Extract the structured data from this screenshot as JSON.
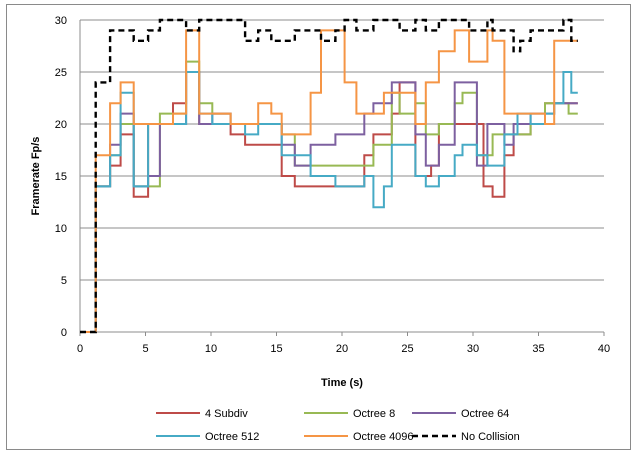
{
  "chart_data": {
    "type": "line",
    "step": true,
    "title": "",
    "xlabel": "Time (s)",
    "ylabel": "Framerate Fp/s",
    "xlim": [
      0,
      40
    ],
    "ylim": [
      0,
      30
    ],
    "xticks": [
      0,
      5,
      10,
      15,
      20,
      25,
      30,
      35,
      40
    ],
    "yticks": [
      0,
      5,
      10,
      15,
      20,
      25,
      30
    ],
    "grid": "horizontal",
    "legend_position": "bottom",
    "series": [
      {
        "name": "4 Subdiv",
        "color": "#be4b48",
        "dash": "solid",
        "points": [
          [
            0,
            0
          ],
          [
            1.1,
            0
          ],
          [
            1.2,
            14
          ],
          [
            2.3,
            16
          ],
          [
            3.1,
            19
          ],
          [
            4.1,
            13
          ],
          [
            5.2,
            20
          ],
          [
            7.1,
            22
          ],
          [
            8.1,
            25
          ],
          [
            9.1,
            20
          ],
          [
            10.1,
            20
          ],
          [
            11.5,
            19
          ],
          [
            12.6,
            18
          ],
          [
            13.6,
            18
          ],
          [
            15.4,
            15
          ],
          [
            16.4,
            14
          ],
          [
            19.5,
            14
          ],
          [
            21.7,
            17
          ],
          [
            22.4,
            19
          ],
          [
            23.8,
            21
          ],
          [
            24.4,
            24
          ],
          [
            25.6,
            15
          ],
          [
            26.8,
            16
          ],
          [
            27.4,
            20
          ],
          [
            29.2,
            20
          ],
          [
            30.8,
            14
          ],
          [
            31.5,
            13
          ],
          [
            32.4,
            17
          ],
          [
            33.1,
            19
          ],
          [
            34.4,
            20
          ],
          [
            35.5,
            22
          ],
          [
            38,
            22
          ]
        ]
      },
      {
        "name": "Octree 8",
        "color": "#98b954",
        "dash": "solid",
        "points": [
          [
            0,
            0
          ],
          [
            1.1,
            0
          ],
          [
            1.2,
            14
          ],
          [
            2.3,
            17
          ],
          [
            3.1,
            20
          ],
          [
            4.1,
            14
          ],
          [
            5.2,
            14
          ],
          [
            6.1,
            21
          ],
          [
            7.1,
            21
          ],
          [
            8.1,
            26
          ],
          [
            9.1,
            22
          ],
          [
            10.1,
            21
          ],
          [
            11.5,
            20
          ],
          [
            12.6,
            20
          ],
          [
            15.4,
            19
          ],
          [
            16.4,
            16
          ],
          [
            19.5,
            16
          ],
          [
            21.7,
            16
          ],
          [
            22.4,
            18
          ],
          [
            23.8,
            23
          ],
          [
            24.4,
            21
          ],
          [
            25.6,
            22
          ],
          [
            26.4,
            19
          ],
          [
            27.4,
            20
          ],
          [
            28.6,
            22
          ],
          [
            29.2,
            23
          ],
          [
            30.3,
            17
          ],
          [
            31.5,
            19
          ],
          [
            33.1,
            19
          ],
          [
            34.4,
            20
          ],
          [
            35.5,
            22
          ],
          [
            36.2,
            22
          ],
          [
            37.3,
            21
          ],
          [
            38,
            21
          ]
        ]
      },
      {
        "name": "Octree 64",
        "color": "#7d60a0",
        "dash": "solid",
        "points": [
          [
            0,
            0
          ],
          [
            1.1,
            0
          ],
          [
            1.2,
            14
          ],
          [
            2.3,
            18
          ],
          [
            3.1,
            21
          ],
          [
            4.1,
            14
          ],
          [
            5.2,
            15
          ],
          [
            6.1,
            20
          ],
          [
            7.1,
            20
          ],
          [
            8.1,
            25
          ],
          [
            9.1,
            20
          ],
          [
            10.1,
            21
          ],
          [
            11.5,
            20
          ],
          [
            12.6,
            20
          ],
          [
            13.6,
            20
          ],
          [
            15.4,
            18
          ],
          [
            16.4,
            16
          ],
          [
            17.6,
            18
          ],
          [
            19.5,
            19
          ],
          [
            21.7,
            21
          ],
          [
            22.4,
            22
          ],
          [
            23.8,
            24
          ],
          [
            24.4,
            24
          ],
          [
            25.6,
            19
          ],
          [
            26.4,
            16
          ],
          [
            27.4,
            18
          ],
          [
            28.6,
            24
          ],
          [
            29.7,
            24
          ],
          [
            30.3,
            16
          ],
          [
            31.1,
            20
          ],
          [
            32.4,
            18
          ],
          [
            33.1,
            20
          ],
          [
            34.4,
            21
          ],
          [
            35.5,
            21
          ],
          [
            36.2,
            22
          ],
          [
            38,
            22
          ]
        ]
      },
      {
        "name": "Octree 512",
        "color": "#46aac5",
        "dash": "solid",
        "points": [
          [
            0,
            0
          ],
          [
            1.1,
            0
          ],
          [
            1.2,
            14
          ],
          [
            2.3,
            17
          ],
          [
            3.1,
            23
          ],
          [
            4.1,
            14
          ],
          [
            5.2,
            20
          ],
          [
            7.1,
            20
          ],
          [
            8.1,
            25
          ],
          [
            9.1,
            21
          ],
          [
            10.1,
            20
          ],
          [
            11.5,
            20
          ],
          [
            12.6,
            19
          ],
          [
            13.6,
            20
          ],
          [
            15.4,
            17
          ],
          [
            16.4,
            17
          ],
          [
            17.6,
            15
          ],
          [
            18.4,
            15
          ],
          [
            19.5,
            14
          ],
          [
            21.7,
            15
          ],
          [
            22.4,
            12
          ],
          [
            23.2,
            14
          ],
          [
            23.8,
            18
          ],
          [
            25.6,
            15
          ],
          [
            26.4,
            14
          ],
          [
            27.4,
            15
          ],
          [
            28.6,
            17
          ],
          [
            29.2,
            18
          ],
          [
            30.3,
            17
          ],
          [
            31.1,
            16
          ],
          [
            32.4,
            19
          ],
          [
            33.4,
            21
          ],
          [
            34.4,
            20
          ],
          [
            35.5,
            21
          ],
          [
            36.2,
            22
          ],
          [
            36.9,
            25
          ],
          [
            37.5,
            23
          ],
          [
            38,
            23
          ]
        ]
      },
      {
        "name": "Octree 4096",
        "color": "#f59545",
        "dash": "solid",
        "points": [
          [
            0,
            0
          ],
          [
            1.1,
            0
          ],
          [
            1.2,
            17
          ],
          [
            2.3,
            22
          ],
          [
            3.1,
            24
          ],
          [
            4.1,
            20
          ],
          [
            5.2,
            20
          ],
          [
            7.1,
            21
          ],
          [
            8.1,
            29
          ],
          [
            9.1,
            21
          ],
          [
            10.1,
            21
          ],
          [
            11.5,
            20
          ],
          [
            12.6,
            20
          ],
          [
            13.6,
            22
          ],
          [
            14.6,
            21
          ],
          [
            15.4,
            19
          ],
          [
            17.6,
            23
          ],
          [
            18.4,
            29
          ],
          [
            19.5,
            29
          ],
          [
            20.2,
            24
          ],
          [
            21.1,
            21
          ],
          [
            22.4,
            21
          ],
          [
            23.2,
            23
          ],
          [
            23.8,
            23
          ],
          [
            24.4,
            23
          ],
          [
            25.6,
            20
          ],
          [
            26.4,
            24
          ],
          [
            27.4,
            27
          ],
          [
            28.6,
            29
          ],
          [
            29.7,
            26
          ],
          [
            31.1,
            29
          ],
          [
            31.5,
            28
          ],
          [
            32.4,
            21
          ],
          [
            33.1,
            21
          ],
          [
            34.4,
            21
          ],
          [
            35.5,
            20
          ],
          [
            36.2,
            28
          ],
          [
            37.3,
            28
          ],
          [
            38,
            28
          ]
        ]
      },
      {
        "name": "No Collision",
        "color": "#000000",
        "dash": "dashed",
        "points": [
          [
            0,
            0
          ],
          [
            1.1,
            0
          ],
          [
            1.2,
            24
          ],
          [
            2.3,
            29
          ],
          [
            3.1,
            29
          ],
          [
            4.1,
            28
          ],
          [
            5.2,
            29
          ],
          [
            6.1,
            30
          ],
          [
            7.1,
            30
          ],
          [
            8.1,
            29
          ],
          [
            9.1,
            30
          ],
          [
            10.1,
            30
          ],
          [
            11.5,
            30
          ],
          [
            12.6,
            28
          ],
          [
            13.6,
            29
          ],
          [
            14.6,
            28
          ],
          [
            15.4,
            28
          ],
          [
            16.4,
            29
          ],
          [
            17.6,
            29
          ],
          [
            18.4,
            28
          ],
          [
            19.5,
            29
          ],
          [
            20.2,
            30
          ],
          [
            21.1,
            29
          ],
          [
            22.4,
            30
          ],
          [
            23.8,
            30
          ],
          [
            24.4,
            29
          ],
          [
            25.6,
            30
          ],
          [
            26.4,
            29
          ],
          [
            27.4,
            30
          ],
          [
            28.6,
            30
          ],
          [
            29.7,
            29
          ],
          [
            30.3,
            29
          ],
          [
            31.1,
            30
          ],
          [
            31.5,
            29
          ],
          [
            32.4,
            29
          ],
          [
            33.1,
            27
          ],
          [
            33.6,
            28
          ],
          [
            34.4,
            29
          ],
          [
            35.5,
            29
          ],
          [
            36.2,
            29
          ],
          [
            36.9,
            30
          ],
          [
            37.5,
            28
          ],
          [
            38,
            28
          ]
        ]
      }
    ]
  }
}
